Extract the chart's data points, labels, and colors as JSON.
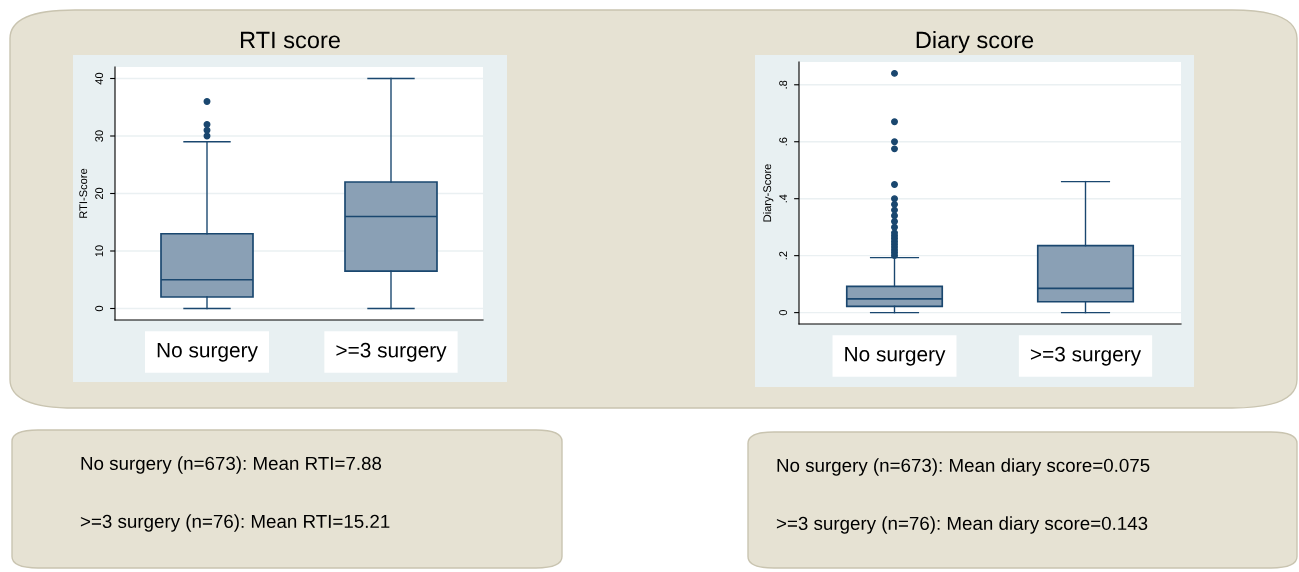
{
  "chart_data": [
    {
      "type": "box",
      "title": "RTI score",
      "ylabel": "RTI-Score",
      "categories": [
        "No surgery",
        ">=3 surgery"
      ],
      "color": "#8aa0b5",
      "ylim": [
        -2,
        42
      ],
      "yticks": [
        0,
        10,
        20,
        30,
        40
      ],
      "grid": "y",
      "boxes": [
        {
          "low": 0,
          "q1": 2,
          "median": 5,
          "q3": 13,
          "high": 29,
          "outliers": [
            30,
            31,
            32,
            36
          ]
        },
        {
          "low": 0,
          "q1": 6.5,
          "median": 16,
          "q3": 22,
          "high": 40
        }
      ],
      "annotations": [
        "No surgery (n=673): Mean RTI=7.88",
        ">=3 surgery (n=76): Mean RTI=15.21"
      ]
    },
    {
      "type": "box",
      "title": "Diary score",
      "ylabel": "Diary-Score",
      "categories": [
        "No surgery",
        ">=3 surgery"
      ],
      "color": "#8aa0b5",
      "ylim": [
        -0.04,
        0.88
      ],
      "yticks": [
        {
          "value": 0,
          "label": "0"
        },
        {
          "value": 0.2,
          "label": ".2"
        },
        {
          "value": 0.4,
          "label": ".4"
        },
        {
          "value": 0.6,
          "label": ".6"
        },
        {
          "value": 0.8,
          "label": ".8"
        }
      ],
      "grid": "y",
      "boxes": [
        {
          "low": 0,
          "q1": 0.022,
          "median": 0.048,
          "q3": 0.092,
          "high": 0.193,
          "outliers": [
            0.2,
            0.21,
            0.22,
            0.23,
            0.24,
            0.25,
            0.26,
            0.27,
            0.28,
            0.3,
            0.32,
            0.34,
            0.36,
            0.38,
            0.4,
            0.45,
            0.575,
            0.6,
            0.67,
            0.84
          ]
        },
        {
          "low": 0,
          "q1": 0.038,
          "median": 0.085,
          "q3": 0.235,
          "high": 0.46
        }
      ],
      "annotations": [
        "No surgery (n=673): Mean diary score=0.075",
        ">=3 surgery (n=76): Mean diary score=0.143"
      ]
    }
  ]
}
